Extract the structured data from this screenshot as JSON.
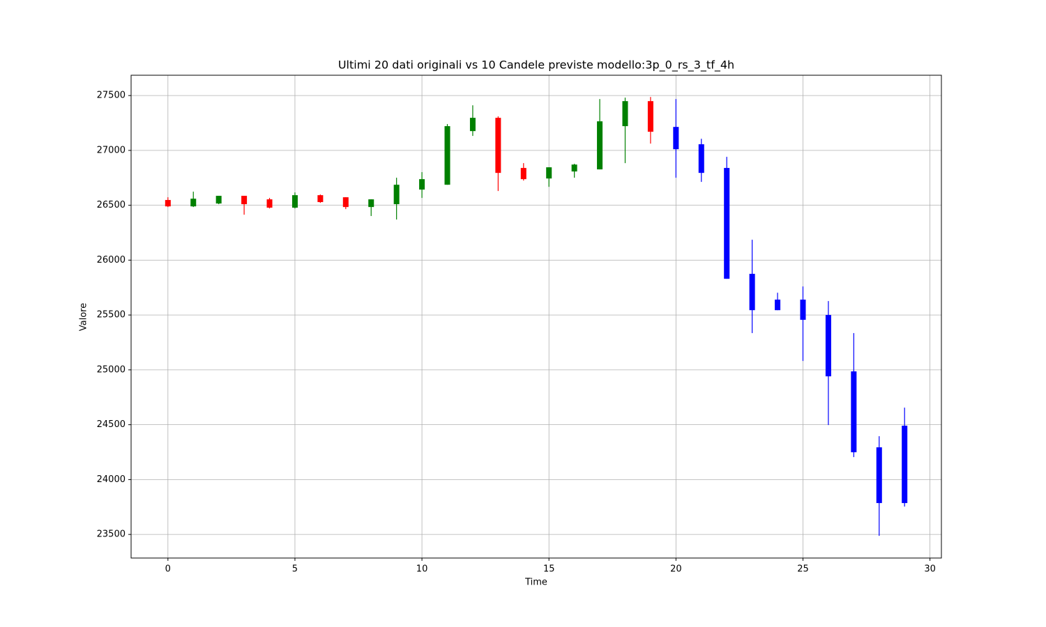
{
  "chart_data": {
    "type": "candlestick",
    "title": "Ultimi 20 dati originali vs 10 Candele previste modello:3p_0_rs_3_tf_4h",
    "x_label": "Time",
    "y_label": "Valore",
    "x": [
      0,
      1,
      2,
      3,
      4,
      5,
      6,
      7,
      8,
      9,
      10,
      11,
      12,
      13,
      14,
      15,
      16,
      17,
      18,
      19,
      20,
      21,
      22,
      23,
      24,
      25,
      26,
      27,
      28,
      29
    ],
    "open": [
      26548,
      26490,
      26516,
      26586,
      26554,
      26478,
      26592,
      26573,
      26484,
      26510,
      26643,
      26687,
      27176,
      27297,
      26840,
      26744,
      26808,
      26827,
      27221,
      27449,
      27214,
      27056,
      26840,
      25875,
      25640,
      25640,
      25500,
      24986,
      24294,
      24491
    ],
    "high": [
      26573,
      26624,
      26586,
      26586,
      26567,
      26617,
      26598,
      26573,
      26554,
      26751,
      26802,
      27240,
      27411,
      27310,
      26884,
      26846,
      26878,
      27468,
      27481,
      27487,
      27468,
      27106,
      26941,
      26186,
      25703,
      25760,
      25627,
      25335,
      24395,
      24656
    ],
    "low": [
      26484,
      26484,
      26510,
      26414,
      26471,
      26471,
      26522,
      26465,
      26402,
      26370,
      26567,
      26687,
      27132,
      26630,
      26725,
      26668,
      26751,
      26827,
      26884,
      27062,
      26751,
      26713,
      25830,
      25335,
      25544,
      25081,
      24497,
      24205,
      23487,
      23754
    ],
    "close": [
      26490,
      26560,
      26586,
      26510,
      26478,
      26592,
      26529,
      26484,
      26554,
      26687,
      26738,
      27221,
      27297,
      26795,
      26738,
      26846,
      26871,
      27265,
      27449,
      27170,
      27011,
      26795,
      25830,
      25544,
      25544,
      25456,
      24941,
      24249,
      23786,
      23786
    ],
    "colors": [
      "red",
      "green",
      "green",
      "red",
      "red",
      "green",
      "red",
      "red",
      "green",
      "green",
      "green",
      "green",
      "green",
      "red",
      "red",
      "green",
      "green",
      "green",
      "green",
      "red",
      "blue",
      "blue",
      "blue",
      "blue",
      "blue",
      "blue",
      "blue",
      "blue",
      "blue",
      "blue"
    ],
    "xlim": [
      -1.45,
      30.45
    ],
    "ylim": [
      23285,
      27685
    ],
    "xticks": [
      0,
      5,
      10,
      15,
      20,
      25,
      30
    ],
    "yticks": [
      23500,
      24000,
      24500,
      25000,
      25500,
      26000,
      26500,
      27000,
      27500
    ],
    "grid": true
  }
}
